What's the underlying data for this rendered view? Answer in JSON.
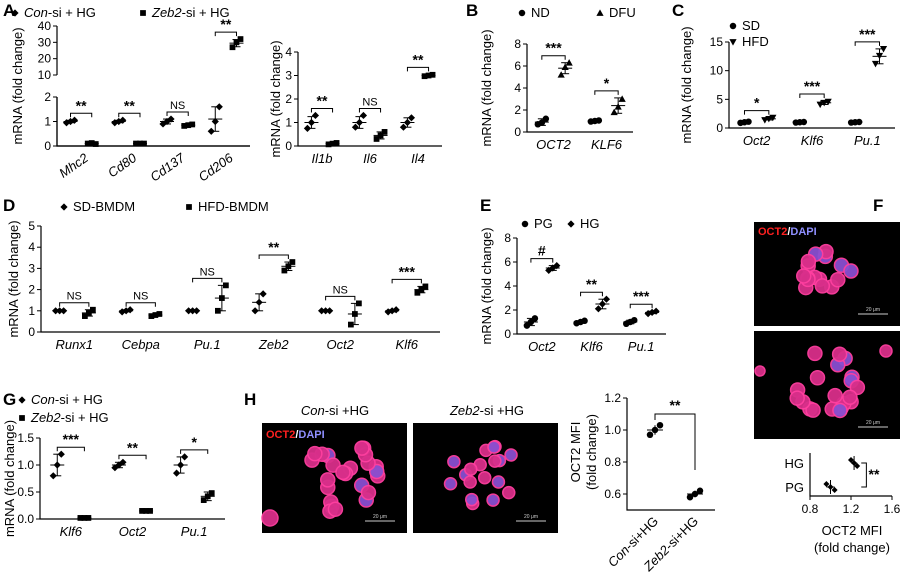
{
  "panels": {
    "A": "A",
    "B": "B",
    "C": "C",
    "D": "D",
    "E": "E",
    "F": "F",
    "G": "G",
    "H": "H"
  },
  "chart_data": [
    {
      "id": "A1",
      "type": "scatter",
      "legend": [
        {
          "label_italic": "Con",
          "label_rest": "-si + HG",
          "marker": "diamond"
        },
        {
          "label_italic": "Zeb2",
          "label_rest": "-si + HG",
          "marker": "square"
        }
      ],
      "ylabel": "mRNA (fold change)",
      "ylim_upper": [
        10,
        40
      ],
      "yticks_upper": [
        "10",
        "20",
        "30",
        "40"
      ],
      "ylim_lower": [
        0,
        2
      ],
      "yticks_lower": [
        "0",
        "1",
        "2"
      ],
      "categories": [
        "Mhc2",
        "Cd80",
        "Cd137",
        "Cd206"
      ],
      "series": [
        {
          "marker": "diamond",
          "mean": [
            1.0,
            1.0,
            1.0,
            1.1
          ],
          "sd": [
            0.05,
            0.05,
            0.1,
            0.5
          ],
          "points": [
            [
              0.95,
              1.0,
              1.05
            ],
            [
              0.95,
              1.0,
              1.05
            ],
            [
              0.9,
              1.0,
              1.1
            ],
            [
              0.6,
              1.0,
              1.6
            ]
          ]
        },
        {
          "marker": "square",
          "mean": [
            0.1,
            0.1,
            0.85,
            29.5
          ],
          "sd": [
            0.03,
            0.03,
            0.05,
            2.2
          ],
          "points": [
            [
              0.1,
              0.12,
              0.08
            ],
            [
              0.1,
              0.1,
              0.1
            ],
            [
              0.82,
              0.85,
              0.88
            ],
            [
              27,
              30,
              32
            ]
          ]
        }
      ],
      "sig": [
        "**",
        "**",
        "NS",
        "**"
      ]
    },
    {
      "id": "A2",
      "type": "scatter",
      "ylabel": "mRNA (fold change)",
      "ylim": [
        0,
        4
      ],
      "yticks": [
        "0",
        "1",
        "2",
        "3",
        "4"
      ],
      "categories": [
        "Il1b",
        "Il6",
        "Il4"
      ],
      "series": [
        {
          "marker": "diamond",
          "mean": [
            1.0,
            1.0,
            1.0
          ],
          "sd": [
            0.25,
            0.25,
            0.2
          ],
          "points": [
            [
              0.75,
              1.0,
              1.3
            ],
            [
              0.8,
              1.0,
              1.3
            ],
            [
              0.8,
              1.0,
              1.2
            ]
          ]
        },
        {
          "marker": "square",
          "mean": [
            0.1,
            0.45,
            3.0
          ],
          "sd": [
            0.04,
            0.15,
            0.05
          ],
          "points": [
            [
              0.07,
              0.1,
              0.13
            ],
            [
              0.3,
              0.45,
              0.6
            ],
            [
              2.97,
              3.0,
              3.03
            ]
          ]
        }
      ],
      "sig": [
        "**",
        "NS",
        "**"
      ]
    },
    {
      "id": "B",
      "type": "scatter",
      "legend": [
        {
          "label": "ND",
          "marker": "circle"
        },
        {
          "label": "DFU",
          "marker": "triangle"
        }
      ],
      "ylabel": "mRNA (fold change)",
      "ylim": [
        0,
        8
      ],
      "yticks": [
        "0",
        "2",
        "4",
        "6",
        "8"
      ],
      "categories": [
        "OCT2",
        "KLF6"
      ],
      "series": [
        {
          "marker": "circle",
          "mean": [
            0.9,
            1.0
          ],
          "sd": [
            0.3,
            0.05
          ],
          "points": [
            [
              0.7,
              0.85,
              1.2
            ],
            [
              0.95,
              1.0,
              1.05
            ]
          ]
        },
        {
          "marker": "triangle",
          "mean": [
            5.8,
            2.4
          ],
          "sd": [
            0.5,
            0.7
          ],
          "points": [
            [
              5.2,
              5.9,
              6.3
            ],
            [
              1.8,
              2.3,
              3.0
            ]
          ]
        }
      ],
      "sig": [
        "***",
        "*"
      ]
    },
    {
      "id": "C",
      "type": "scatter",
      "legend": [
        {
          "label": "SD",
          "marker": "circle"
        },
        {
          "label": "HFD",
          "marker": "triangle-down"
        }
      ],
      "ylabel": "mRNA (fold change)",
      "ylim": [
        0,
        15
      ],
      "yticks": [
        "0",
        "5",
        "10",
        "15"
      ],
      "categories": [
        "Oct2",
        "Klf6",
        "Pu.1"
      ],
      "series": [
        {
          "marker": "circle",
          "mean": [
            1.0,
            1.0,
            1.0
          ],
          "sd": [
            0.1,
            0.1,
            0.1
          ],
          "points": [
            [
              0.9,
              1.0,
              1.1
            ],
            [
              0.95,
              1.0,
              1.05
            ],
            [
              0.95,
              1.0,
              1.05
            ]
          ]
        },
        {
          "marker": "triangle-down",
          "mean": [
            1.6,
            4.4,
            12.5
          ],
          "sd": [
            0.2,
            0.3,
            1.3
          ],
          "points": [
            [
              1.4,
              1.6,
              1.8
            ],
            [
              4.1,
              4.4,
              4.6
            ],
            [
              11.2,
              12.6,
              13.8
            ]
          ]
        }
      ],
      "sig": [
        "*",
        "***",
        "***"
      ]
    },
    {
      "id": "D",
      "type": "scatter",
      "legend": [
        {
          "label": "SD-BMDM",
          "marker": "diamond"
        },
        {
          "label": "HFD-BMDM",
          "marker": "square"
        }
      ],
      "ylabel": "mRNA (fold change)",
      "ylim": [
        0,
        5
      ],
      "yticks": [
        "0",
        "1",
        "2",
        "3",
        "4",
        "5"
      ],
      "categories": [
        "Runx1",
        "Cebpa",
        "Pu.1",
        "Zeb2",
        "Oct2",
        "Klf6"
      ],
      "series": [
        {
          "marker": "diamond",
          "mean": [
            1.0,
            1.0,
            1.0,
            1.4,
            1.0,
            1.0
          ],
          "sd": [
            0.02,
            0.05,
            0.02,
            0.4,
            0.02,
            0.05
          ],
          "points": [
            [
              1.0,
              1.0,
              1.0
            ],
            [
              0.95,
              1.0,
              1.05
            ],
            [
              1.0,
              1.0,
              1.0
            ],
            [
              1.0,
              1.4,
              1.8
            ],
            [
              1.0,
              1.0,
              1.0
            ],
            [
              0.95,
              1.0,
              1.05
            ]
          ]
        },
        {
          "marker": "square",
          "mean": [
            0.9,
            0.8,
            1.6,
            3.1,
            0.85,
            2.0
          ],
          "sd": [
            0.15,
            0.05,
            0.6,
            0.2,
            0.5,
            0.15
          ],
          "points": [
            [
              0.75,
              0.9,
              1.05
            ],
            [
              0.75,
              0.8,
              0.85
            ],
            [
              1.0,
              1.6,
              2.2
            ],
            [
              2.9,
              3.1,
              3.3
            ],
            [
              0.35,
              0.85,
              1.35
            ],
            [
              1.85,
              2.0,
              2.15
            ]
          ]
        }
      ],
      "sig": [
        "NS",
        "NS",
        "NS",
        "**",
        "NS",
        "***"
      ]
    },
    {
      "id": "E",
      "type": "scatter",
      "legend": [
        {
          "label": "PG",
          "marker": "circle"
        },
        {
          "label": "HG",
          "marker": "diamond"
        }
      ],
      "ylabel": "mRNA (fold change)",
      "ylim": [
        0,
        8
      ],
      "yticks": [
        "0",
        "2",
        "4",
        "6",
        "8"
      ],
      "categories": [
        "Oct2",
        "Klf6",
        "Pu.1"
      ],
      "series": [
        {
          "marker": "circle",
          "mean": [
            1.0,
            1.0,
            1.0
          ],
          "sd": [
            0.3,
            0.1,
            0.15
          ],
          "points": [
            [
              0.7,
              1.0,
              1.3
            ],
            [
              0.9,
              1.0,
              1.1
            ],
            [
              0.85,
              1.0,
              1.15
            ]
          ]
        },
        {
          "marker": "diamond",
          "mean": [
            5.5,
            2.5,
            1.8
          ],
          "sd": [
            0.2,
            0.4,
            0.1
          ],
          "points": [
            [
              5.3,
              5.5,
              5.7
            ],
            [
              2.1,
              2.5,
              2.9
            ],
            [
              1.7,
              1.8,
              1.9
            ]
          ]
        }
      ],
      "sig": [
        "#",
        "**",
        "***"
      ]
    },
    {
      "id": "G",
      "type": "scatter",
      "legend": [
        {
          "label_italic": "Con",
          "label_rest": "-si + HG",
          "marker": "diamond"
        },
        {
          "label_italic": "Zeb2",
          "label_rest": "-si + HG",
          "marker": "square"
        }
      ],
      "ylabel": "mRNA (fold change)",
      "ylim": [
        0,
        1.5
      ],
      "yticks": [
        "0.0",
        "0.5",
        "1.0",
        "1.5"
      ],
      "categories": [
        "Klf6",
        "Oct2",
        "Pu.1"
      ],
      "series": [
        {
          "marker": "diamond",
          "mean": [
            1.0,
            1.0,
            1.0
          ],
          "sd": [
            0.2,
            0.05,
            0.15
          ],
          "points": [
            [
              0.8,
              1.0,
              1.2
            ],
            [
              0.95,
              1.0,
              1.05
            ],
            [
              0.85,
              1.0,
              1.15
            ]
          ]
        },
        {
          "marker": "square",
          "mean": [
            0.02,
            0.15,
            0.42
          ],
          "sd": [
            0.01,
            0.01,
            0.08
          ],
          "points": [
            [
              0.02,
              0.02,
              0.02
            ],
            [
              0.15,
              0.15,
              0.15
            ],
            [
              0.35,
              0.42,
              0.48
            ]
          ]
        }
      ],
      "sig": [
        "***",
        "**",
        "*"
      ]
    },
    {
      "id": "H",
      "type": "scatter",
      "ylabel_line1": "OCT2 MFI",
      "ylabel_line2": "(fold change)",
      "ylim": [
        0.5,
        1.1
      ],
      "yticks": [
        "0.6",
        "0.8",
        "1.0",
        "1.2"
      ],
      "categories": [
        "Con-si+HG",
        "Zeb2-si+HG"
      ],
      "cat_italic": [
        "Con",
        "Zeb2"
      ],
      "cat_rest": [
        "-si+HG",
        "-si+HG"
      ],
      "series": [
        {
          "marker": "circle",
          "mean": [
            1.0,
            0.6
          ],
          "sd": [
            0.03,
            0.02
          ],
          "points": [
            [
              0.97,
              1.0,
              1.03
            ],
            [
              0.58,
              0.6,
              0.62
            ]
          ]
        }
      ],
      "sig": [
        "**"
      ]
    },
    {
      "id": "F",
      "type": "scatter",
      "orientation": "horizontal",
      "xlabel_line1": "OCT2 MFI",
      "xlabel_line2": "(fold change)",
      "xlim": [
        0.8,
        1.6
      ],
      "xticks": [
        "0.8",
        "1.2",
        "1.6"
      ],
      "categories": [
        "HG",
        "PG"
      ],
      "series": [
        {
          "marker": "diamond",
          "mean": [
            1.23,
            1.0
          ],
          "sd": [
            0.03,
            0.04
          ],
          "points": [
            [
              1.2,
              1.23,
              1.26
            ],
            [
              0.96,
              1.0,
              1.04
            ]
          ]
        }
      ],
      "sig": [
        "**"
      ]
    }
  ],
  "images": {
    "F_label_red": "OCT2",
    "F_label_sep": "/",
    "F_label_blue": "DAPI",
    "F_scale": "20 μm",
    "H_title_left_italic": "Con",
    "H_title_left_rest": "-si +HG",
    "H_title_right_italic": "Zeb2",
    "H_title_right_rest": "-si +HG",
    "H_label_red": "OCT2",
    "H_label_sep": "/",
    "H_label_blue": "DAPI",
    "H_scale": "20 μm"
  },
  "colors": {
    "red_label": "#ff2020",
    "blue_label": "#8f8fff",
    "cell": "#d82f8a",
    "cell_blue": "#8a4fd0",
    "bg": "#000000"
  }
}
